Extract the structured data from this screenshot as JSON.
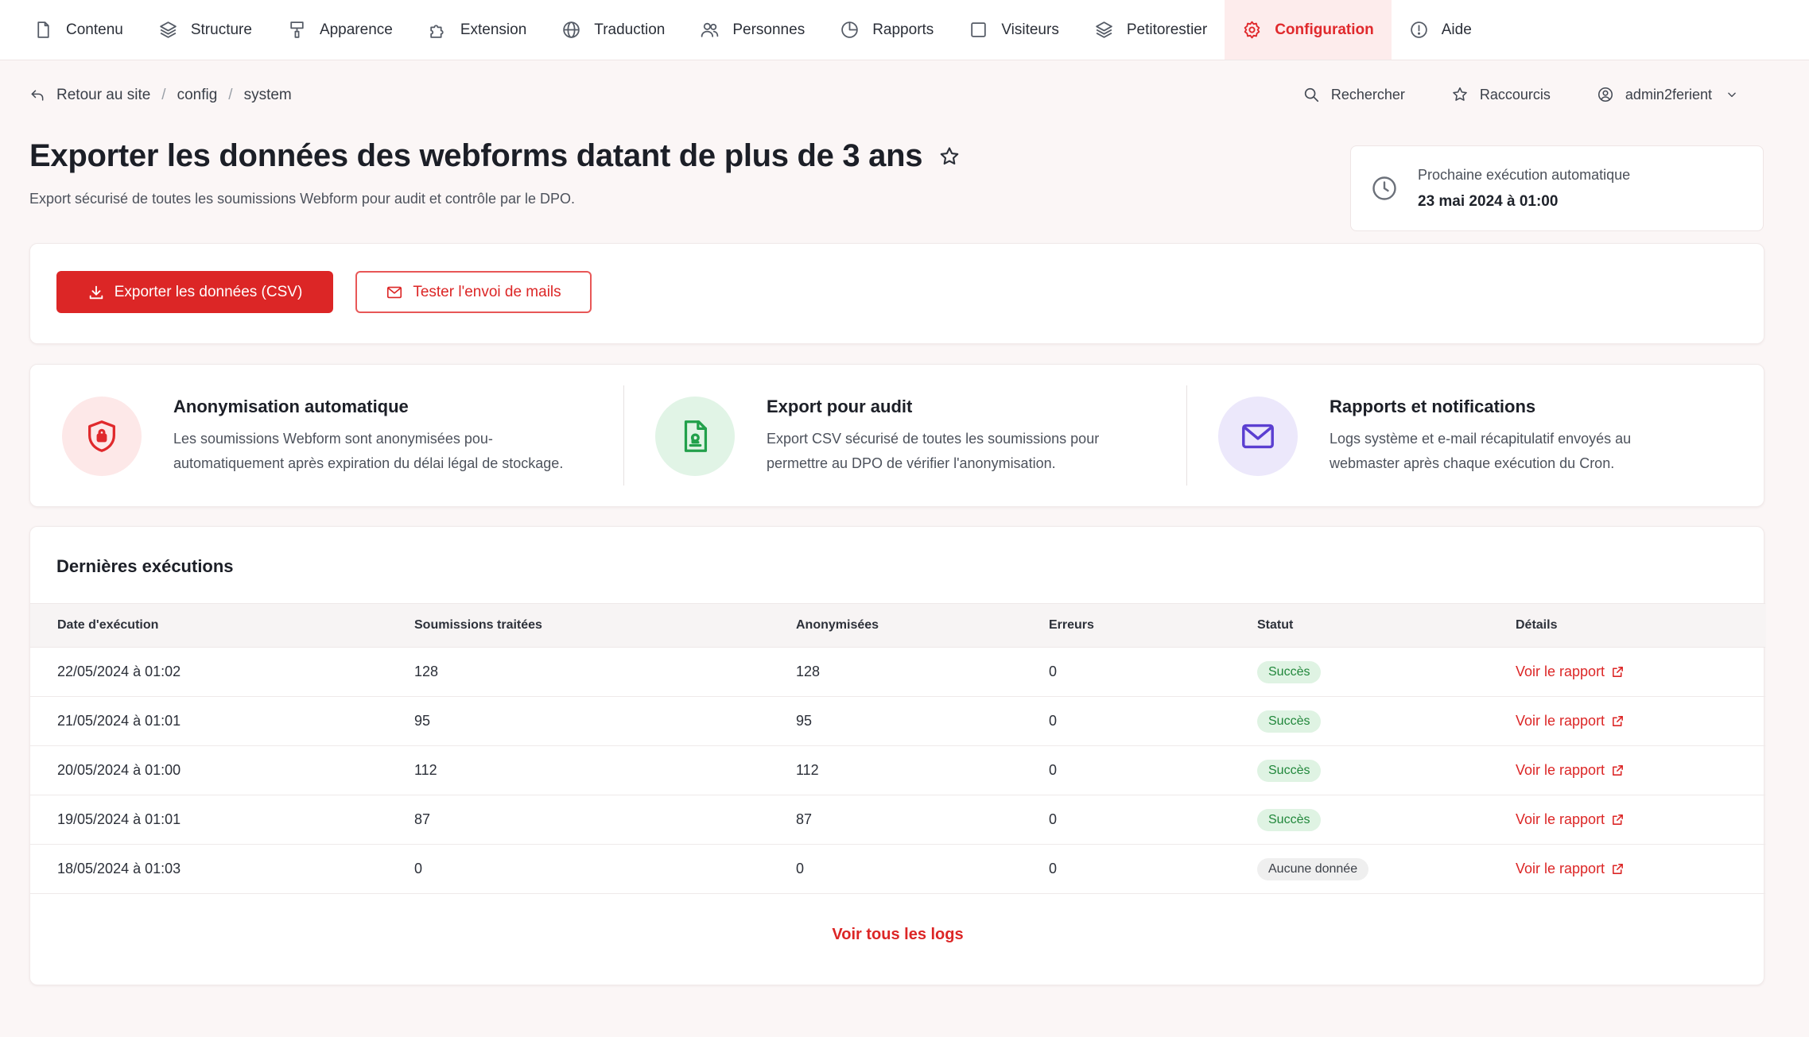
{
  "nav": {
    "items": [
      {
        "label": "Contenu",
        "icon": "file-icon",
        "active": false
      },
      {
        "label": "Structure",
        "icon": "layers-icon",
        "active": false
      },
      {
        "label": "Apparence",
        "icon": "paintbrush-icon",
        "active": false
      },
      {
        "label": "Extension",
        "icon": "puzzle-icon",
        "active": false
      },
      {
        "label": "Traduction",
        "icon": "globe-icon",
        "active": false
      },
      {
        "label": "Personnes",
        "icon": "users-icon",
        "active": false
      },
      {
        "label": "Rapports",
        "icon": "pie-chart-icon",
        "active": false
      },
      {
        "label": "Visiteurs",
        "icon": "square-icon",
        "active": false
      },
      {
        "label": "Petitorestier",
        "icon": "stack-icon",
        "active": false
      },
      {
        "label": "Configuration",
        "icon": "gear-icon",
        "active": true
      },
      {
        "label": "Aide",
        "icon": "info-icon",
        "active": false
      }
    ]
  },
  "breadcrumb": {
    "back_label": "Retour au site",
    "items": [
      "config",
      "system"
    ],
    "separator": "/"
  },
  "utility": {
    "search_label": "Rechercher",
    "shortcuts_label": "Raccourcis",
    "user_label": "admin2ferient"
  },
  "page": {
    "title": "Exporter les données des webforms datant de plus de 3 ans",
    "subtitle": "Export sécurisé de toutes les soumissions Webform pour audit et contrôle par le DPO."
  },
  "next_run": {
    "label": "Prochaine exécution automatique",
    "value": "23 mai 2024 à 01:00"
  },
  "actions": {
    "export_label": "Exporter les données (CSV)",
    "test_mail_label": "Tester l'envoi de mails"
  },
  "features": [
    {
      "title": "Anonymisation automatique",
      "desc_line1": "Les soumissions Webform sont anonymisées pou-",
      "desc_line2": "automatiquement après expiration du délai légal de stockage.",
      "icon": "shield-lock-icon",
      "color": "#e0292c",
      "bg": "#fde8e8"
    },
    {
      "title": "Export pour audit",
      "desc_line1": "Export CSV sécurisé de toutes les soumissions pour",
      "desc_line2": "permettre au DPO de vérifier l'anonymisation.",
      "icon": "file-check-icon",
      "color": "#22a04b",
      "bg": "#e1f4e6"
    },
    {
      "title": "Rapports et notifications",
      "desc_line1": "Logs système et e-mail récapitulatif envoyés au",
      "desc_line2": "webmaster après chaque exécution du Cron.",
      "icon": "mail-icon",
      "color": "#5b3fd1",
      "bg": "#ece8fb"
    }
  ],
  "executions": {
    "title": "Dernières exécutions",
    "columns": [
      "Date d'exécution",
      "Soumissions traitées",
      "Anonymisées",
      "Erreurs",
      "Statut",
      "Détails"
    ],
    "rows": [
      {
        "date": "22/05/2024 à 01:02",
        "processed": "128",
        "anonymized": "128",
        "errors": "0",
        "status": "Succès",
        "status_type": "ok",
        "details": "Voir le rapport"
      },
      {
        "date": "21/05/2024 à 01:01",
        "processed": "95",
        "anonymized": "95",
        "errors": "0",
        "status": "Succès",
        "status_type": "ok",
        "details": "Voir le rapport"
      },
      {
        "date": "20/05/2024 à 01:00",
        "processed": "112",
        "anonymized": "112",
        "errors": "0",
        "status": "Succès",
        "status_type": "ok",
        "details": "Voir le rapport"
      },
      {
        "date": "19/05/2024 à 01:01",
        "processed": "87",
        "anonymized": "87",
        "errors": "0",
        "status": "Succès",
        "status_type": "ok",
        "details": "Voir le rapport"
      },
      {
        "date": "18/05/2024 à 01:03",
        "processed": "0",
        "anonymized": "0",
        "errors": "0",
        "status": "Aucune donnée",
        "status_type": "none",
        "details": "Voir le rapport"
      }
    ],
    "all_logs_label": "Voir tous les logs"
  },
  "colors": {
    "accent": "#dc2626",
    "success_bg": "#dff3e3",
    "success_text": "#21873b"
  }
}
